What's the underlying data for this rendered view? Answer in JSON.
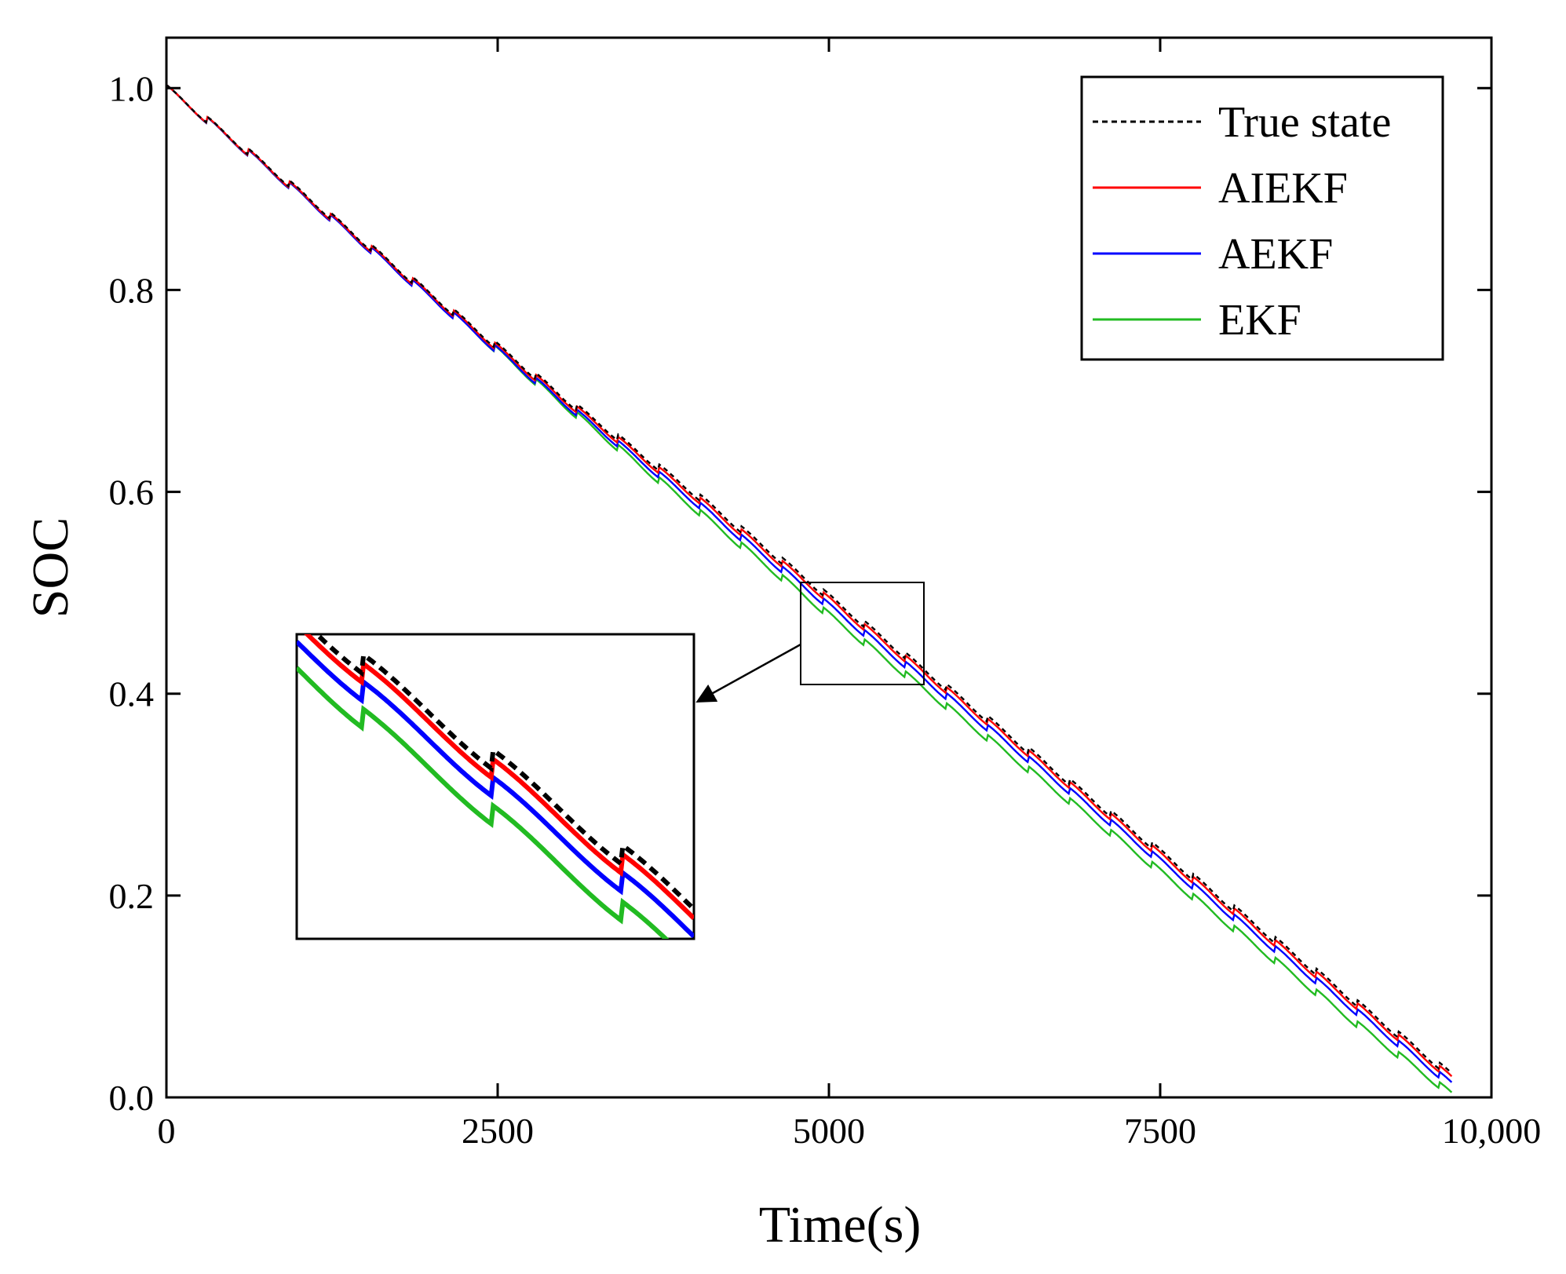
{
  "chart_data": {
    "type": "line",
    "title": "",
    "xlabel": "Time(s)",
    "ylabel": "SOC",
    "xlim": [
      0,
      10000
    ],
    "ylim": [
      0,
      1.05
    ],
    "xticks": [
      0,
      2500,
      5000,
      7500,
      10000
    ],
    "xtick_labels": [
      "0",
      "2500",
      "5000",
      "7500",
      "10,000"
    ],
    "yticks": [
      0,
      0.2,
      0.4,
      0.6,
      0.8,
      1.0
    ],
    "ytick_labels": [
      "0.0",
      "0.2",
      "0.4",
      "0.6",
      "0.8",
      "1.0"
    ],
    "grid": false,
    "legend_position": "top-right",
    "step_model": {
      "start_time": 0,
      "end_time": 9700,
      "start_soc": 1.0,
      "end_soc": 0.022,
      "steps": 31,
      "step_spacing_s": 310
    },
    "series": [
      {
        "name": "True state",
        "color": "#000000",
        "style": "dashed",
        "x": [
          0,
          1000,
          2000,
          3000,
          4000,
          5000,
          6000,
          7000,
          8000,
          9000,
          9700
        ],
        "y": [
          1.0,
          0.898,
          0.795,
          0.693,
          0.597,
          0.496,
          0.395,
          0.294,
          0.193,
          0.092,
          0.022
        ]
      },
      {
        "name": "AIEKF",
        "color": "#ff0000",
        "style": "solid",
        "x": [
          0,
          1000,
          2000,
          3000,
          4000,
          5000,
          6000,
          7000,
          8000,
          9000,
          9700
        ],
        "y": [
          1.0,
          0.897,
          0.794,
          0.691,
          0.594,
          0.493,
          0.392,
          0.291,
          0.19,
          0.089,
          0.019
        ]
      },
      {
        "name": "AEKF",
        "color": "#0000ff",
        "style": "solid",
        "x": [
          0,
          1000,
          2000,
          3000,
          4000,
          5000,
          6000,
          7000,
          8000,
          9000,
          9700
        ],
        "y": [
          1.0,
          0.896,
          0.792,
          0.688,
          0.589,
          0.487,
          0.386,
          0.285,
          0.184,
          0.083,
          0.013
        ]
      },
      {
        "name": "EKF",
        "color": "#22bb22",
        "style": "solid",
        "x": [
          0,
          1000,
          2000,
          3000,
          4000,
          5000,
          6000,
          7000,
          8000,
          9000,
          9700
        ],
        "y": [
          1.0,
          0.896,
          0.793,
          0.686,
          0.582,
          0.478,
          0.376,
          0.275,
          0.173,
          0.071,
          0.003
        ]
      }
    ],
    "zoom_region": {
      "x_range": [
        4800,
        5750
      ],
      "y_range": [
        0.41,
        0.51
      ]
    }
  }
}
